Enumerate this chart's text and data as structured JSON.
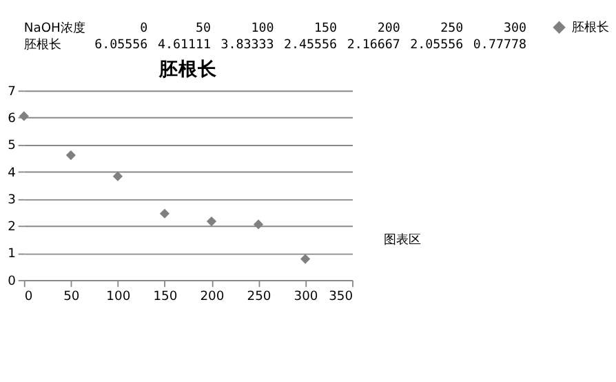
{
  "chart_data": {
    "type": "scatter",
    "title": "胚根长",
    "xlabel": "NaOH浓度",
    "x": [
      0,
      50,
      100,
      150,
      200,
      250,
      300
    ],
    "series": [
      {
        "name": "胚根长",
        "color": "#808080",
        "values": [
          6.05556,
          4.61111,
          3.83333,
          2.45556,
          2.16667,
          2.05556,
          0.77778
        ]
      }
    ],
    "xlim": [
      0,
      350
    ],
    "xticks": [
      0,
      50,
      100,
      150,
      200,
      250,
      300,
      350
    ],
    "ylim": [
      0,
      7
    ],
    "yticks": [
      0,
      1,
      2,
      3,
      4,
      5,
      6,
      7
    ],
    "grid": "y",
    "legend": "right",
    "marker": "diamond",
    "annotations": [
      "0",
      "50",
      "100",
      "150",
      "200",
      "250",
      "300",
      "6.05556",
      "4.61111",
      "3.83333",
      "2.45556",
      "2.16667",
      "2.05556",
      "0.77778",
      "图表区"
    ]
  }
}
